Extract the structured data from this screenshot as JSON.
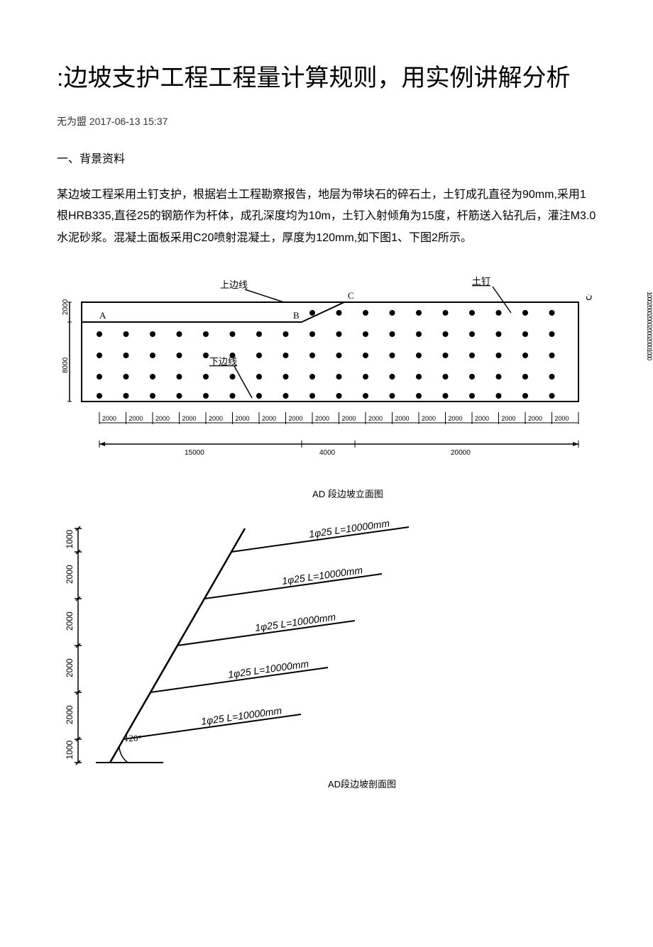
{
  "title": ":边坡支护工程工程量计算规则，用实例讲解分析",
  "meta": {
    "author": "无为盟",
    "date": "2017-06-13 15:37"
  },
  "section1": {
    "heading": "一、背景资料",
    "paragraph": "某边坡工程采用土钉支护，根据岩土工程勘察报告，地层为带块石的碎石土，土钉成孔直径为90mm,采用1根HRB335,直径25的钢筋作为杆体，成孔深度均为10m，土钉入射倾角为15度，杆筋送入钻孔后，灌注M3.0水泥砂浆。混凝土面板采用C20喷射混凝土，厚度为120mm,如下图1、下图2所示。"
  },
  "figure1": {
    "caption": "AD 段边坡立面图",
    "labels": {
      "top_line": "上边线",
      "bottom_line": "下边线",
      "soil_nail": "土钉",
      "point_a": "A",
      "point_b": "B",
      "point_c": "C"
    },
    "dimensions": {
      "left_top": "2000",
      "left_bottom": "8000",
      "horizontal_unit": "2000",
      "bottom_segments": [
        "15000",
        "4000",
        "20000"
      ],
      "horizontal_count": 18,
      "side_dims_text": "100020002000200020001000"
    },
    "grid": {
      "rows": 5,
      "cols": 18,
      "dot_color": "#000000",
      "line_color": "#000000",
      "dot_radius": 4
    },
    "style": {
      "stroke_width": 2,
      "background": "#ffffff"
    }
  },
  "figure2": {
    "caption": "AD段边坡剖面图",
    "angle_label": "120°",
    "nail_label": "1φ25 L=10000mm",
    "nail_count": 5,
    "left_dims": [
      "1000",
      "2000",
      "2000",
      "2000",
      "2000",
      "1000"
    ],
    "style": {
      "stroke_width": 2,
      "line_color": "#000000"
    }
  }
}
